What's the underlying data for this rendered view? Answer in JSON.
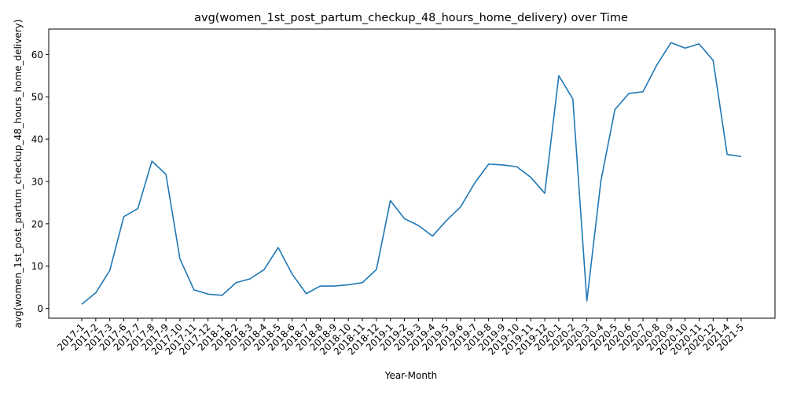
{
  "chart_data": {
    "type": "line",
    "title": "avg(women_1st_post_partum_checkup_48_hours_home_delivery) over Time",
    "xlabel": "Year-Month",
    "ylabel": "avg(women_1st_post_partum_checkup_48_hours_home_delivery)",
    "ylim": [
      -2.3,
      66.0
    ],
    "yticks": [
      0,
      10,
      20,
      30,
      40,
      50,
      60
    ],
    "grid": false,
    "line_color": "#1f77b4",
    "categories": [
      "2017-1",
      "2017-2",
      "2017-3",
      "2017-6",
      "2017-7",
      "2017-8",
      "2017-9",
      "2017-10",
      "2017-11",
      "2017-12",
      "2018-1",
      "2018-2",
      "2018-3",
      "2018-4",
      "2018-5",
      "2018-6",
      "2018-7",
      "2018-8",
      "2018-9",
      "2018-10",
      "2018-11",
      "2018-12",
      "2019-1",
      "2019-2",
      "2019-3",
      "2019-4",
      "2019-5",
      "2019-6",
      "2019-7",
      "2019-8",
      "2019-9",
      "2019-10",
      "2019-11",
      "2019-12",
      "2020-1",
      "2020-2",
      "2020-3",
      "2020-4",
      "2020-5",
      "2020-6",
      "2020-7",
      "2020-8",
      "2020-9",
      "2020-10",
      "2020-11",
      "2020-12",
      "2021-4",
      "2021-5"
    ],
    "values": [
      1.0,
      3.7,
      9.0,
      21.7,
      23.6,
      34.8,
      31.7,
      11.7,
      4.4,
      3.4,
      3.1,
      6.1,
      7.0,
      9.2,
      14.4,
      8.1,
      3.5,
      5.3,
      5.3,
      5.6,
      6.1,
      9.2,
      25.5,
      21.2,
      19.6,
      17.1,
      20.8,
      24.0,
      29.6,
      34.1,
      33.9,
      33.5,
      31.0,
      27.2,
      55.0,
      49.5,
      1.8,
      30.1,
      47.0,
      50.8,
      51.2,
      57.6,
      62.8,
      61.5,
      62.5,
      58.6,
      36.4,
      35.9
    ]
  }
}
